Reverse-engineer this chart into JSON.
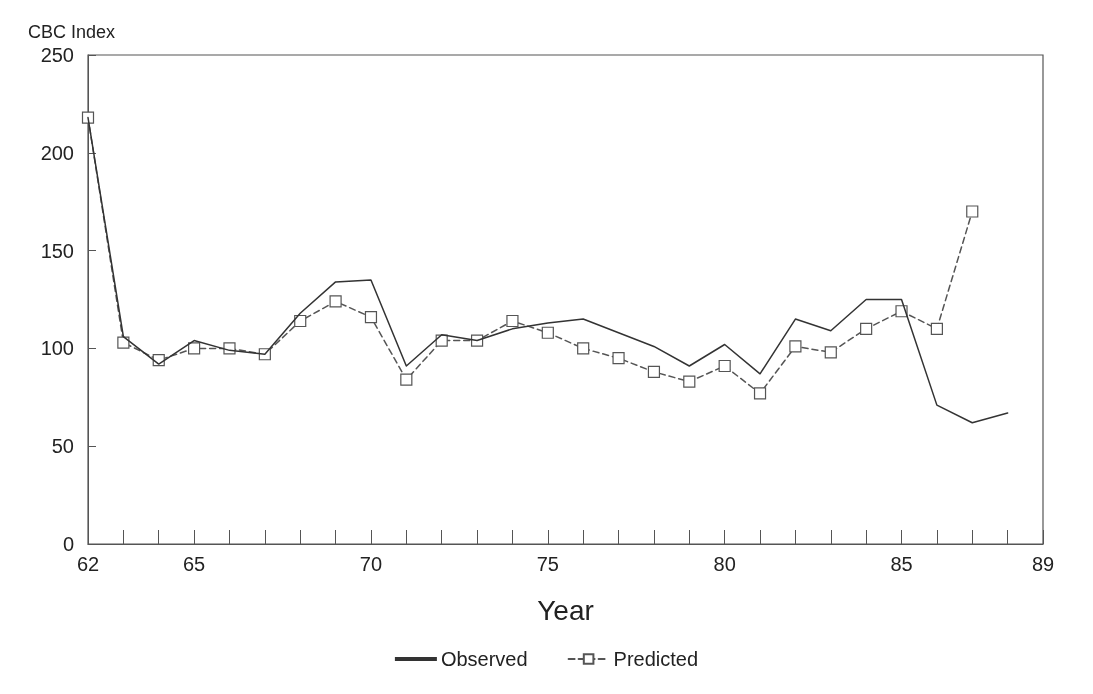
{
  "chart_data": {
    "type": "line",
    "ylabel": "CBC Index",
    "xlabel": "Year",
    "xlim": [
      62,
      89
    ],
    "ylim": [
      0,
      250
    ],
    "xticks": [
      62,
      {
        "value": 63,
        "label": null
      },
      {
        "value": 64,
        "label": null
      },
      65,
      {
        "value": 66,
        "label": null
      },
      {
        "value": 67,
        "label": null
      },
      {
        "value": 68,
        "label": null
      },
      {
        "value": 69,
        "label": null
      },
      70,
      {
        "value": 71,
        "label": null
      },
      {
        "value": 72,
        "label": null
      },
      {
        "value": 73,
        "label": null
      },
      {
        "value": 74,
        "label": null
      },
      75,
      {
        "value": 76,
        "label": null
      },
      {
        "value": 77,
        "label": null
      },
      {
        "value": 78,
        "label": null
      },
      {
        "value": 79,
        "label": null
      },
      80,
      {
        "value": 81,
        "label": null
      },
      {
        "value": 82,
        "label": null
      },
      {
        "value": 83,
        "label": null
      },
      {
        "value": 84,
        "label": null
      },
      85,
      {
        "value": 86,
        "label": null
      },
      {
        "value": 87,
        "label": null
      },
      {
        "value": 88,
        "label": null
      },
      89
    ],
    "yticks": [
      0,
      50,
      100,
      150,
      200,
      250
    ],
    "grid": false,
    "legend": "bottom",
    "series": [
      {
        "name": "Observed",
        "color": "#333333",
        "marker": "none",
        "line_style": "solid",
        "x": [
          62,
          63,
          64,
          65,
          66,
          67,
          68,
          69,
          70,
          71,
          72,
          73,
          74,
          75,
          76,
          77,
          78,
          79,
          80,
          81,
          82,
          83,
          84,
          85,
          86,
          87,
          88
        ],
        "values": [
          218,
          106,
          92,
          104,
          99,
          97,
          118,
          134,
          135,
          91,
          107,
          104,
          110,
          113,
          115,
          108,
          101,
          91,
          102,
          87,
          115,
          109,
          125,
          125,
          71,
          62,
          67
        ]
      },
      {
        "name": "Predicted",
        "color": "#555555",
        "marker": "square",
        "line_style": "dashed",
        "x": [
          62,
          63,
          64,
          65,
          66,
          67,
          68,
          69,
          70,
          71,
          72,
          73,
          74,
          75,
          76,
          77,
          78,
          79,
          80,
          81,
          82,
          83,
          84,
          85,
          86,
          87
        ],
        "values": [
          218,
          103,
          94,
          100,
          100,
          97,
          114,
          124,
          116,
          84,
          104,
          104,
          114,
          108,
          100,
          95,
          88,
          83,
          91,
          77,
          101,
          98,
          110,
          119,
          110,
          170
        ]
      }
    ]
  }
}
